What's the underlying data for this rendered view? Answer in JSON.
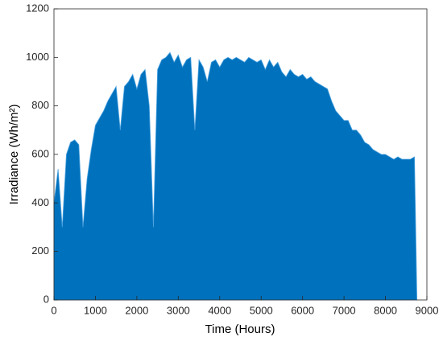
{
  "chart_data": {
    "type": "area",
    "xlabel": "Time (Hours)",
    "ylabel": "Irradiance (Wh/m²)",
    "xlim": [
      0,
      9000
    ],
    "xticks": [
      0,
      1000,
      2000,
      3000,
      4000,
      5000,
      6000,
      7000,
      8000,
      9000
    ],
    "ylim": [
      0,
      1200
    ],
    "yticks": [
      0,
      200,
      400,
      600,
      800,
      1000,
      1200
    ],
    "series": [
      {
        "color": "#0072bd",
        "x": [
          0,
          100,
          200,
          300,
          400,
          500,
          600,
          700,
          800,
          900,
          1000,
          1100,
          1200,
          1300,
          1400,
          1500,
          1600,
          1700,
          1800,
          1900,
          2000,
          2100,
          2200,
          2300,
          2400,
          2500,
          2600,
          2700,
          2800,
          2900,
          3000,
          3100,
          3200,
          3300,
          3400,
          3500,
          3600,
          3700,
          3800,
          3900,
          4000,
          4100,
          4200,
          4300,
          4400,
          4500,
          4600,
          4700,
          4800,
          4900,
          5000,
          5100,
          5200,
          5300,
          5400,
          5500,
          5600,
          5700,
          5800,
          5900,
          6000,
          6100,
          6200,
          6300,
          6400,
          6500,
          6600,
          6700,
          6800,
          6900,
          7000,
          7100,
          7200,
          7300,
          7400,
          7500,
          7600,
          7700,
          7800,
          7900,
          8000,
          8100,
          8200,
          8300,
          8400,
          8500,
          8600,
          8700,
          8760
        ],
        "values": [
          400,
          540,
          300,
          600,
          650,
          660,
          640,
          300,
          500,
          620,
          720,
          750,
          780,
          820,
          850,
          880,
          700,
          880,
          900,
          930,
          870,
          930,
          950,
          800,
          300,
          950,
          990,
          1000,
          1020,
          980,
          1010,
          960,
          990,
          1000,
          700,
          990,
          960,
          900,
          980,
          990,
          960,
          990,
          1000,
          990,
          1000,
          990,
          980,
          1000,
          990,
          980,
          990,
          950,
          990,
          960,
          980,
          940,
          920,
          950,
          930,
          920,
          930,
          910,
          920,
          900,
          890,
          880,
          870,
          820,
          780,
          760,
          740,
          740,
          700,
          700,
          680,
          650,
          640,
          620,
          610,
          600,
          600,
          590,
          580,
          590,
          580,
          580,
          580,
          590,
          0
        ]
      }
    ]
  }
}
